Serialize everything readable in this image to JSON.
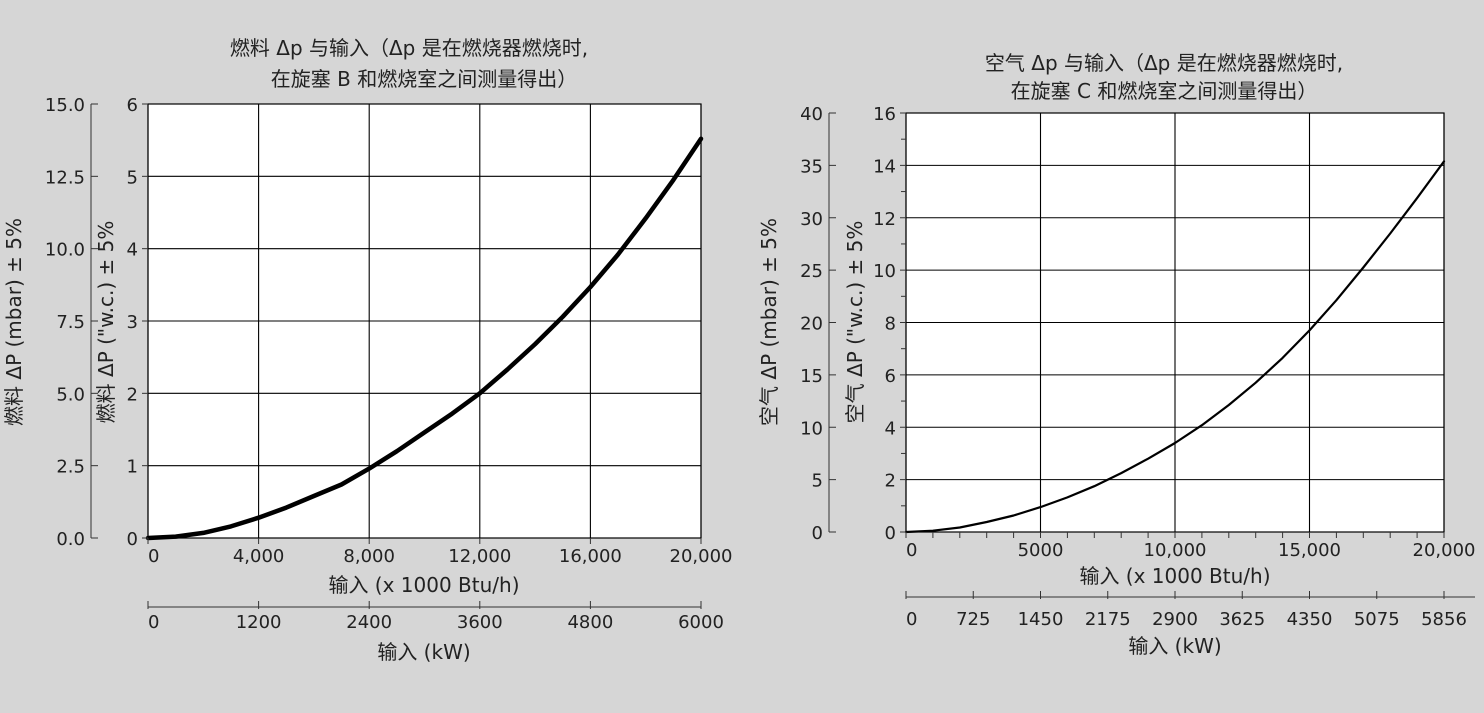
{
  "colors": {
    "background": "#d6d6d6",
    "plot": "#ffffff",
    "ink": "#000000"
  },
  "chart_data": [
    {
      "type": "line",
      "title": [
        "燃料 Δp 与输入（Δp 是在燃烧器燃烧时,",
        "在旋塞 B 和燃烧室之间测量得出）"
      ],
      "xlabel": "输入 (x 1000 Btu/h)",
      "x2label": "输入 (kW)",
      "ylabel_left": "燃料 ΔP (mbar) ± 5%",
      "ylabel_inner": "燃料 ΔP (\"w.c.) ± 5%",
      "xlim": [
        0,
        20000
      ],
      "ylim": [
        0,
        6
      ],
      "ylim_left": [
        0,
        15
      ],
      "x_ticks": [
        "0",
        "4,000",
        "8,000",
        "12,000",
        "16,000",
        "20,000"
      ],
      "x_tick_values": [
        0,
        4000,
        8000,
        12000,
        16000,
        20000
      ],
      "x2_ticks": [
        "0",
        "1200",
        "2400",
        "3600",
        "4800",
        "6000"
      ],
      "y_ticks": [
        "0",
        "1",
        "2",
        "3",
        "4",
        "5",
        "6"
      ],
      "y_left_ticks": [
        "0.0",
        "2.5",
        "5.0",
        "7.5",
        "10.0",
        "12.5",
        "15.0"
      ],
      "grid": true,
      "series": [
        {
          "x": [
            0,
            1000,
            2000,
            3000,
            4000,
            5000,
            6000,
            7000,
            8000,
            9000,
            10000,
            11000,
            12000,
            13000,
            14000,
            15000,
            16000,
            17000,
            18000,
            19000,
            20000
          ],
          "y": [
            0,
            0.02,
            0.07,
            0.16,
            0.28,
            0.42,
            0.58,
            0.74,
            0.96,
            1.2,
            1.46,
            1.72,
            2.0,
            2.33,
            2.68,
            3.06,
            3.47,
            3.92,
            4.42,
            4.95,
            5.52
          ]
        }
      ]
    },
    {
      "type": "line",
      "title": [
        "空气 Δp 与输入（Δp 是在燃烧器燃烧时,",
        "在旋塞 C 和燃烧室之间测量得出）"
      ],
      "xlabel": "输入 (x 1000 Btu/h)",
      "x2label": "输入 (kW)",
      "ylabel_left": "空气 ΔP (mbar) ± 5%",
      "ylabel_inner": "空气 ΔP (\"w.c.) ± 5%",
      "xlim": [
        0,
        20000
      ],
      "ylim": [
        0,
        16
      ],
      "ylim_left": [
        0,
        40
      ],
      "x_ticks": [
        "0",
        "5000",
        "10,000",
        "15,000",
        "20,000"
      ],
      "x_tick_values": [
        0,
        5000,
        10000,
        15000,
        20000
      ],
      "x2_ticks": [
        "0",
        "725",
        "1450",
        "2175",
        "2900",
        "3625",
        "4350",
        "5075",
        "5856"
      ],
      "y_ticks": [
        "0",
        "2",
        "4",
        "6",
        "8",
        "10",
        "12",
        "14",
        "16"
      ],
      "y_left_ticks": [
        "0",
        "5",
        "10",
        "15",
        "20",
        "25",
        "30",
        "35",
        "40"
      ],
      "grid": true,
      "series": [
        {
          "x": [
            0,
            1000,
            2000,
            3000,
            4000,
            5000,
            6000,
            7000,
            8000,
            9000,
            10000,
            11000,
            12000,
            13000,
            14000,
            15000,
            16000,
            17000,
            18000,
            19000,
            20000
          ],
          "y": [
            0,
            0.05,
            0.17,
            0.38,
            0.63,
            0.95,
            1.32,
            1.75,
            2.25,
            2.8,
            3.4,
            4.08,
            4.85,
            5.7,
            6.65,
            7.7,
            8.85,
            10.1,
            11.4,
            12.75,
            14.15
          ]
        }
      ]
    }
  ]
}
